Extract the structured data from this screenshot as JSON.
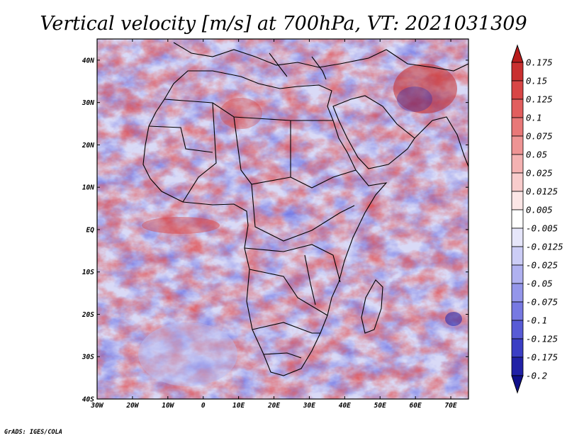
{
  "title": "Vertical velocity [m/s] at 700hPa, VT: 2021031309",
  "credit": "GrADS: IGES/COLA",
  "map": {
    "lat_labels": [
      "40N",
      "30N",
      "20N",
      "10N",
      "EQ",
      "10S",
      "20S",
      "30S",
      "40S"
    ],
    "lon_labels": [
      "30W",
      "20W",
      "10W",
      "0",
      "10E",
      "20E",
      "30E",
      "40E",
      "50E",
      "60E",
      "70E"
    ],
    "lat_range": [
      -40,
      45
    ],
    "lon_range": [
      -30,
      75
    ]
  },
  "colorbar": {
    "labels": [
      "0.175",
      "0.15",
      "0.125",
      "0.1",
      "0.075",
      "0.05",
      "0.025",
      "0.0125",
      "0.005",
      "-0.005",
      "-0.0125",
      "-0.025",
      "-0.05",
      "-0.075",
      "-0.1",
      "-0.125",
      "-0.175",
      "-0.2"
    ],
    "colors": [
      "#b81c1c",
      "#c93030",
      "#d84646",
      "#e25e5e",
      "#e87878",
      "#ee9494",
      "#f4b2b2",
      "#f8cccc",
      "#fbe6e6",
      "#ffffff",
      "#e6e6fa",
      "#cccdf6",
      "#b0b1f0",
      "#9496ea",
      "#7779e2",
      "#585bd6",
      "#3b3ec4",
      "#2121a6",
      "#10108a"
    ]
  }
}
